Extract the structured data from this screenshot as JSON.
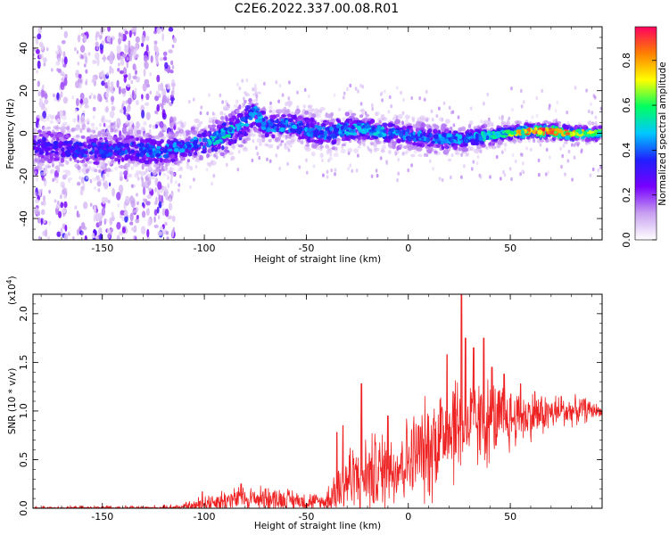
{
  "title": "C2E6.2022.337.00.08.R01",
  "chart_data": [
    {
      "type": "heatmap",
      "xlabel": "Height of straight line (km)",
      "ylabel": "Frequency (Hz)",
      "xlim": [
        -184,
        95
      ],
      "ylim": [
        -50,
        50
      ],
      "xticks": [
        -150,
        -100,
        -50,
        0,
        50
      ],
      "yticks": [
        -40,
        -20,
        0,
        20,
        40
      ],
      "colorbar": {
        "label": "Normalized spectral amplitude",
        "range": [
          0.0,
          0.95
        ],
        "ticks": [
          "0.0",
          "0.2",
          "0.4",
          "0.6",
          "0.8"
        ],
        "colormap": [
          "#ffffff",
          "#c8a0f0",
          "#7800ff",
          "#2020ff",
          "#00c8ff",
          "#00ff60",
          "#ffff00",
          "#ff8000",
          "#ff0060"
        ]
      },
      "ridge": {
        "x": [
          -180,
          -160,
          -150,
          -140,
          -130,
          -120,
          -110,
          -100,
          -90,
          -80,
          -75,
          -70,
          -60,
          -50,
          -40,
          -30,
          -20,
          -10,
          0,
          10,
          20,
          30,
          40,
          50,
          60,
          70,
          80,
          95
        ],
        "center_hz": [
          -6,
          -8,
          -8,
          -7,
          -8,
          -9,
          -6,
          -4,
          -1,
          5,
          10,
          3,
          4,
          2,
          0,
          2,
          2,
          0,
          -1,
          -2,
          -3,
          -2,
          -1,
          0,
          1,
          1,
          0,
          0
        ],
        "halfwidth_hz": [
          10,
          9,
          9,
          8,
          8,
          8,
          7,
          7,
          8,
          9,
          8,
          7,
          7,
          7,
          8,
          7,
          6,
          6,
          6,
          6,
          6,
          5,
          4,
          3,
          3,
          3,
          3,
          3
        ],
        "peak_amplitude": [
          0.3,
          0.35,
          0.35,
          0.38,
          0.4,
          0.42,
          0.42,
          0.45,
          0.5,
          0.45,
          0.45,
          0.4,
          0.42,
          0.42,
          0.4,
          0.45,
          0.45,
          0.45,
          0.42,
          0.42,
          0.42,
          0.45,
          0.5,
          0.6,
          0.85,
          0.9,
          0.75,
          0.6
        ]
      },
      "noise_columns_x": [
        -180,
        -170,
        -160,
        -152,
        -147,
        -140,
        -135,
        -128,
        -122,
        -117
      ]
    },
    {
      "type": "line",
      "xlabel": "Height of straight line (km)",
      "ylabel": "SNR (10 * v/v)",
      "y_multiplier": "(x10",
      "y_multiplier_exp": "4",
      "y_multiplier_close": ")",
      "xlim": [
        -184,
        95
      ],
      "ylim": [
        0.0,
        2.2
      ],
      "xticks": [
        -150,
        -100,
        -50,
        0,
        50
      ],
      "yticks": [
        "0.0",
        "0.5",
        "1.0",
        "1.5",
        "2.0"
      ],
      "series": [
        {
          "color": "#ee2222",
          "envelope": {
            "x": [
              -184,
              -120,
              -105,
              -100,
              -90,
              -80,
              -70,
              -60,
              -50,
              -42,
              -38,
              -35,
              -30,
              -20,
              -10,
              0,
              10,
              15,
              20,
              25,
              30,
              40,
              50,
              60,
              70,
              80,
              88,
              95
            ],
            "baseline": [
              0.0,
              0.0,
              0.02,
              0.05,
              0.08,
              0.1,
              0.1,
              0.09,
              0.07,
              0.06,
              0.1,
              0.2,
              0.3,
              0.35,
              0.4,
              0.5,
              0.6,
              0.75,
              0.82,
              0.85,
              0.85,
              0.88,
              0.92,
              0.95,
              0.98,
              1.0,
              1.01,
              1.0
            ],
            "amplitude": [
              0.02,
              0.03,
              0.06,
              0.12,
              0.12,
              0.13,
              0.12,
              0.12,
              0.1,
              0.08,
              0.25,
              0.35,
              0.4,
              0.42,
              0.42,
              0.45,
              0.55,
              0.6,
              0.6,
              0.6,
              0.5,
              0.45,
              0.35,
              0.25,
              0.2,
              0.15,
              0.12,
              0.04
            ]
          },
          "peaks": [
            {
              "x": -101,
              "y": 0.17
            },
            {
              "x": -82,
              "y": 0.25
            },
            {
              "x": -70,
              "y": 0.2
            },
            {
              "x": -35,
              "y": 0.78
            },
            {
              "x": -32,
              "y": 0.85
            },
            {
              "x": -23,
              "y": 1.28
            },
            {
              "x": -10,
              "y": 0.95
            },
            {
              "x": 5,
              "y": 0.85
            },
            {
              "x": 19,
              "y": 1.58
            },
            {
              "x": 22,
              "y": 1.2
            },
            {
              "x": 26,
              "y": 2.22
            },
            {
              "x": 28,
              "y": 1.75
            },
            {
              "x": 32,
              "y": 1.65
            },
            {
              "x": 37,
              "y": 1.75
            },
            {
              "x": 41,
              "y": 1.45
            },
            {
              "x": 47,
              "y": 1.38
            },
            {
              "x": 55,
              "y": 1.28
            },
            {
              "x": 62,
              "y": 1.2
            },
            {
              "x": 75,
              "y": 1.15
            },
            {
              "x": 86,
              "y": 1.12
            }
          ]
        }
      ]
    }
  ]
}
